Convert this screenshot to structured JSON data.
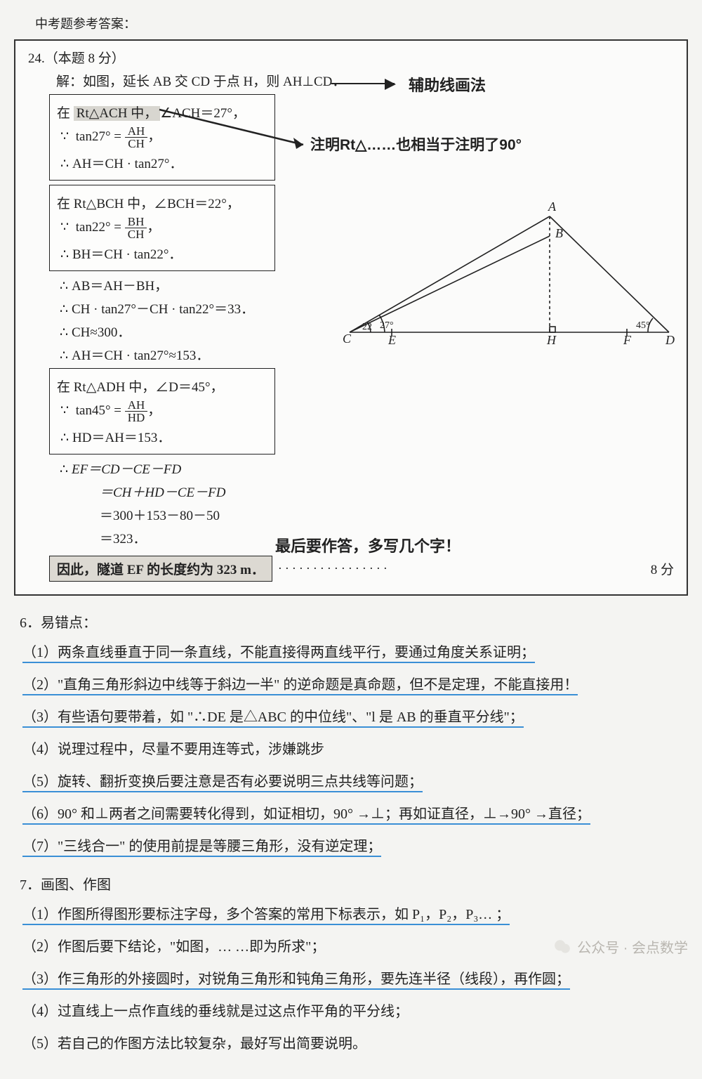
{
  "header_title": "中考题参考答案：",
  "problem": {
    "number": "24.（本题 8 分）",
    "intro": "解：如图，延长 AB 交 CD 于点 H，则 AH⊥CD．",
    "annotation1": "辅助线画法",
    "annotation2": "注明Rt△……也相当于注明了90°",
    "box1": {
      "l1_prefix": "在 ",
      "l1_hl": "Rt△ACH 中，",
      "l1_suffix": "∠ACH＝27°，",
      "l2": "tan27° =",
      "l2_num": "AH",
      "l2_den": "CH",
      "l3": "AH＝CH · tan27°．"
    },
    "box2": {
      "l1": "在 Rt△BCH 中，∠BCH＝22°，",
      "l2": "tan22° =",
      "l2_num": "BH",
      "l2_den": "CH",
      "l3": "BH＝CH · tan22°．"
    },
    "mid1": "AB＝AH－BH，",
    "mid2": "CH · tan27°－CH · tan22°＝33．",
    "mid3": "CH≈300．",
    "mid4": "AH＝CH · tan27°≈153．",
    "box3": {
      "l1": "在 Rt△ADH 中，∠D＝45°，",
      "l2": "tan45° =",
      "l2_num": "AH",
      "l2_den": "HD",
      "l3": "HD＝AH＝153．"
    },
    "ef1": "EF＝CD－CE－FD",
    "ef2": "＝CH＋HD－CE－FD",
    "ef3": "＝300＋153－80－50",
    "ef4": "＝323．",
    "annotation3": "最后要作答，多写几个字！",
    "final": "因此，隧道 EF 的长度约为 323 m．",
    "score_dots": "················",
    "score": "8 分"
  },
  "diagram": {
    "labels": {
      "A": "A",
      "B": "B",
      "C": "C",
      "D": "D",
      "E": "E",
      "F": "F",
      "H": "H"
    },
    "angles": {
      "c1": "22",
      "c2": "27°",
      "d": "45°"
    },
    "stroke": "#222222",
    "label_fontsize": 18,
    "angle_fontsize": 14
  },
  "section6": {
    "title": "6．易错点：",
    "items": [
      "（1）两条直线垂直于同一条直线，不能直接得两直线平行，要通过角度关系证明；",
      "（2）\"直角三角形斜边中线等于斜边一半\" 的逆命题是真命题，但不是定理，不能直接用！",
      "（3）有些语句要带着，如 \"∴DE 是△ABC 的中位线\"、\"l 是 AB 的垂直平分线\"；",
      "（4）说理过程中，尽量不要用连等式，涉嫌跳步",
      "（5）旋转、翻折变换后要注意是否有必要说明三点共线等问题；",
      "（6）90° 和⊥两者之间需要转化得到，如证相切，90° →⊥；再如证直径，⊥→90° →直径；",
      "（7）\"三线合一\" 的使用前提是等腰三角形，没有逆定理；"
    ],
    "underline_idx": [
      0,
      1,
      2,
      4,
      5,
      6
    ]
  },
  "section7": {
    "title": "7．画图、作图",
    "items": [
      "（1）作图所得图形要标注字母，多个答案的常用下标表示，如 P₁，P₂，P₃… ；",
      "（2）作图后要下结论，\"如图，… …即为所求\"；",
      "（3）作三角形的外接圆时，对锐角三角形和钝角三角形，要先连半径（线段），再作圆；",
      "（4）过直线上一点作直线的垂线就是过这点作平角的平分线；",
      "（5）若自己的作图方法比较复杂，最好写出简要说明。"
    ],
    "underline_idx": [
      0,
      2
    ]
  },
  "watermark": "公众号 · 会点数学"
}
